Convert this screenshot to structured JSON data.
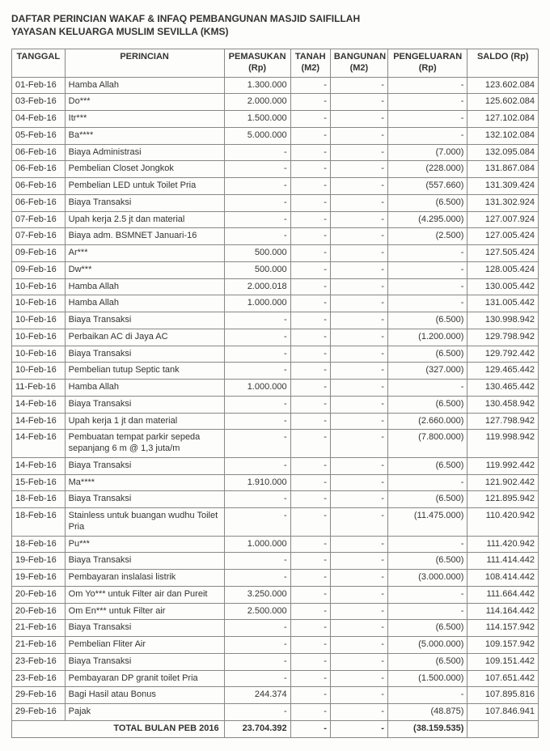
{
  "header": {
    "title": "DAFTAR PERINCIAN WAKAF & INFAQ PEMBANGUNAN MASJID SAIFILLAH",
    "subtitle": "YAYASAN KELUARGA MUSLIM SEVILLA (KMS)"
  },
  "columns": {
    "tanggal": "TANGGAL",
    "perincian": "PERINCIAN",
    "pemasukan": "PEMASUKAN (Rp)",
    "tanah": "TANAH (M2)",
    "bangunan": "BANGUNAN (M2)",
    "pengeluaran": "PENGELUARAN (Rp)",
    "saldo": "SALDO (Rp)"
  },
  "rows": [
    {
      "date": "01-Feb-16",
      "desc": "Hamba Allah",
      "in": "1.300.000",
      "tanah": "-",
      "bang": "-",
      "out": "-",
      "saldo": "123.602.084"
    },
    {
      "date": "03-Feb-16",
      "desc": "Do***",
      "in": "2.000.000",
      "tanah": "-",
      "bang": "-",
      "out": "-",
      "saldo": "125.602.084"
    },
    {
      "date": "04-Feb-16",
      "desc": "Itr***",
      "in": "1.500.000",
      "tanah": "-",
      "bang": "-",
      "out": "-",
      "saldo": "127.102.084"
    },
    {
      "date": "05-Feb-16",
      "desc": "Ba****",
      "in": "5.000.000",
      "tanah": "-",
      "bang": "-",
      "out": "-",
      "saldo": "132.102.084"
    },
    {
      "date": "06-Feb-16",
      "desc": "Biaya Administrasi",
      "in": "-",
      "tanah": "-",
      "bang": "-",
      "out": "(7.000)",
      "saldo": "132.095.084"
    },
    {
      "date": "06-Feb-16",
      "desc": "Pembelian Closet Jongkok",
      "in": "-",
      "tanah": "-",
      "bang": "-",
      "out": "(228.000)",
      "saldo": "131.867.084"
    },
    {
      "date": "06-Feb-16",
      "desc": "Pembelian LED untuk Toilet Pria",
      "in": "-",
      "tanah": "-",
      "bang": "-",
      "out": "(557.660)",
      "saldo": "131.309.424"
    },
    {
      "date": "06-Feb-16",
      "desc": "Biaya Transaksi",
      "in": "-",
      "tanah": "-",
      "bang": "-",
      "out": "(6.500)",
      "saldo": "131.302.924"
    },
    {
      "date": "07-Feb-16",
      "desc": "Upah kerja 2.5 jt dan material",
      "in": "-",
      "tanah": "-",
      "bang": "-",
      "out": "(4.295.000)",
      "saldo": "127.007.924"
    },
    {
      "date": "07-Feb-16",
      "desc": "Biaya adm. BSMNET Januari-16",
      "in": "-",
      "tanah": "-",
      "bang": "-",
      "out": "(2.500)",
      "saldo": "127.005.424"
    },
    {
      "date": "09-Feb-16",
      "desc": "Ar***",
      "in": "500.000",
      "tanah": "-",
      "bang": "-",
      "out": "-",
      "saldo": "127.505.424"
    },
    {
      "date": "09-Feb-16",
      "desc": "Dw***",
      "in": "500.000",
      "tanah": "-",
      "bang": "-",
      "out": "-",
      "saldo": "128.005.424"
    },
    {
      "date": "10-Feb-16",
      "desc": "Hamba Allah",
      "in": "2.000.018",
      "tanah": "-",
      "bang": "-",
      "out": "-",
      "saldo": "130.005.442"
    },
    {
      "date": "10-Feb-16",
      "desc": "Hamba Allah",
      "in": "1.000.000",
      "tanah": "-",
      "bang": "-",
      "out": "-",
      "saldo": "131.005.442"
    },
    {
      "date": "10-Feb-16",
      "desc": "Biaya Transaksi",
      "in": "-",
      "tanah": "-",
      "bang": "-",
      "out": "(6.500)",
      "saldo": "130.998.942"
    },
    {
      "date": "10-Feb-16",
      "desc": "Perbaikan AC di Jaya AC",
      "in": "-",
      "tanah": "-",
      "bang": "-",
      "out": "(1.200.000)",
      "saldo": "129.798.942"
    },
    {
      "date": "10-Feb-16",
      "desc": "Biaya Transaksi",
      "in": "-",
      "tanah": "-",
      "bang": "-",
      "out": "(6.500)",
      "saldo": "129.792.442"
    },
    {
      "date": "10-Feb-16",
      "desc": "Pembelian tutup Septic tank",
      "in": "-",
      "tanah": "-",
      "bang": "-",
      "out": "(327.000)",
      "saldo": "129.465.442"
    },
    {
      "date": "11-Feb-16",
      "desc": "Hamba Allah",
      "in": "1.000.000",
      "tanah": "-",
      "bang": "-",
      "out": "-",
      "saldo": "130.465.442"
    },
    {
      "date": "14-Feb-16",
      "desc": "Biaya Transaksi",
      "in": "-",
      "tanah": "-",
      "bang": "-",
      "out": "(6.500)",
      "saldo": "130.458.942"
    },
    {
      "date": "14-Feb-16",
      "desc": "Upah kerja 1 jt dan material",
      "in": "-",
      "tanah": "-",
      "bang": "-",
      "out": "(2.660.000)",
      "saldo": "127.798.942"
    },
    {
      "date": "14-Feb-16",
      "desc": "Pembuatan tempat parkir sepeda sepanjang 6 m @ 1,3 juta/m",
      "in": "-",
      "tanah": "-",
      "bang": "-",
      "out": "(7.800.000)",
      "saldo": "119.998.942"
    },
    {
      "date": "14-Feb-16",
      "desc": "Biaya Transaksi",
      "in": "-",
      "tanah": "-",
      "bang": "-",
      "out": "(6.500)",
      "saldo": "119.992.442"
    },
    {
      "date": "15-Feb-16",
      "desc": "Ma****",
      "in": "1.910.000",
      "tanah": "-",
      "bang": "-",
      "out": "-",
      "saldo": "121.902.442"
    },
    {
      "date": "18-Feb-16",
      "desc": "Biaya Transaksi",
      "in": "-",
      "tanah": "-",
      "bang": "-",
      "out": "(6.500)",
      "saldo": "121.895.942"
    },
    {
      "date": "18-Feb-16",
      "desc": "Stainless untuk buangan wudhu Toilet Pria",
      "in": "-",
      "tanah": "-",
      "bang": "-",
      "out": "(11.475.000)",
      "saldo": "110.420.942"
    },
    {
      "date": "18-Feb-16",
      "desc": "Pu***",
      "in": "1.000.000",
      "tanah": "-",
      "bang": "-",
      "out": "-",
      "saldo": "111.420.942"
    },
    {
      "date": "19-Feb-16",
      "desc": "Biaya Transaksi",
      "in": "-",
      "tanah": "-",
      "bang": "-",
      "out": "(6.500)",
      "saldo": "111.414.442"
    },
    {
      "date": "19-Feb-16",
      "desc": "Pembayaran inslalasi listrik",
      "in": "-",
      "tanah": "-",
      "bang": "-",
      "out": "(3.000.000)",
      "saldo": "108.414.442"
    },
    {
      "date": "20-Feb-16",
      "desc": "Om Yo*** untuk Filter air dan Pureit",
      "in": "3.250.000",
      "tanah": "-",
      "bang": "-",
      "out": "-",
      "saldo": "111.664.442"
    },
    {
      "date": "20-Feb-16",
      "desc": "Om En*** untuk Filter air",
      "in": "2.500.000",
      "tanah": "-",
      "bang": "-",
      "out": "-",
      "saldo": "114.164.442"
    },
    {
      "date": "21-Feb-16",
      "desc": "Biaya Transaksi",
      "in": "-",
      "tanah": "-",
      "bang": "-",
      "out": "(6.500)",
      "saldo": "114.157.942"
    },
    {
      "date": "21-Feb-16",
      "desc": "Pembelian Fliter Air",
      "in": "-",
      "tanah": "-",
      "bang": "-",
      "out": "(5.000.000)",
      "saldo": "109.157.942"
    },
    {
      "date": "23-Feb-16",
      "desc": "Biaya Transaksi",
      "in": "-",
      "tanah": "-",
      "bang": "-",
      "out": "(6.500)",
      "saldo": "109.151.442"
    },
    {
      "date": "23-Feb-16",
      "desc": "Pembayaran DP granit toilet Pria",
      "in": "-",
      "tanah": "-",
      "bang": "-",
      "out": "(1.500.000)",
      "saldo": "107.651.442"
    },
    {
      "date": "29-Feb-16",
      "desc": "Bagi Hasil atau Bonus",
      "in": "244.374",
      "tanah": "-",
      "bang": "-",
      "out": "-",
      "saldo": "107.895.816"
    },
    {
      "date": "29-Feb-16",
      "desc": "Pajak",
      "in": "-",
      "tanah": "-",
      "bang": "-",
      "out": "(48.875)",
      "saldo": "107.846.941"
    }
  ],
  "total": {
    "label": "TOTAL BULAN PEB 2016",
    "in": "23.704.392",
    "tanah": "-",
    "bang": "-",
    "out": "(38.159.535)",
    "saldo": ""
  }
}
